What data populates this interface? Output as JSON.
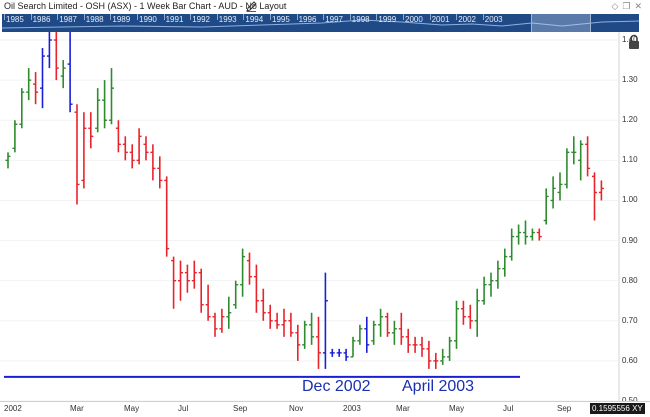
{
  "window": {
    "title": "Oil Search Limited - OSH (ASX) - 1 Week Bar Chart - AUD - No Layout",
    "icons": [
      "pencil-icon",
      "diamond-icon",
      "restore-icon",
      "close-icon"
    ]
  },
  "navigator": {
    "years": [
      "1985",
      "1986",
      "1987",
      "1988",
      "1989",
      "1990",
      "1991",
      "1992",
      "1993",
      "1994",
      "1995",
      "1996",
      "1997",
      "1998",
      "1999",
      "2000",
      "2001",
      "2002",
      "2003"
    ]
  },
  "axis": {
    "y_labels": [
      "1.40",
      "1.30",
      "1.20",
      "1.10",
      "1.00",
      "0.90",
      "0.80",
      "0.70",
      "0.60",
      "0.50"
    ],
    "x_labels": [
      "2002",
      "Mar",
      "May",
      "Jul",
      "Sep",
      "Nov",
      "2003",
      "Mar",
      "May",
      "Jul",
      "Sep"
    ],
    "price_readout": "0.1595556",
    "xy_badge": "XY"
  },
  "annotations": {
    "dec": "Dec 2002",
    "apr": "April 2003"
  },
  "colors": {
    "up": "#2e8b2e",
    "down": "#e8232b",
    "highlight": "#1a1fd6",
    "navigator": "#1f4a86",
    "support_line": "#1a1fd6"
  },
  "chart_data": {
    "type": "bar",
    "title": "Oil Search Limited - OSH (ASX) - 1 Week Bar Chart - AUD - No Layout",
    "ylim": [
      0.5,
      1.42
    ],
    "support_level": 0.56,
    "bars": [
      {
        "h": 1.12,
        "l": 1.08,
        "o": 1.1,
        "c": 1.11,
        "k": "u"
      },
      {
        "h": 1.2,
        "l": 1.12,
        "o": 1.13,
        "c": 1.19,
        "k": "u"
      },
      {
        "h": 1.28,
        "l": 1.18,
        "o": 1.19,
        "c": 1.27,
        "k": "u"
      },
      {
        "h": 1.33,
        "l": 1.25,
        "o": 1.27,
        "c": 1.3,
        "k": "u"
      },
      {
        "h": 1.32,
        "l": 1.24,
        "o": 1.29,
        "c": 1.27,
        "k": "d"
      },
      {
        "h": 1.38,
        "l": 1.23,
        "o": 1.28,
        "c": 1.36,
        "k": "h"
      },
      {
        "h": 1.42,
        "l": 1.33,
        "o": 1.36,
        "c": 1.4,
        "k": "h"
      },
      {
        "h": 1.42,
        "l": 1.3,
        "o": 1.4,
        "c": 1.33,
        "k": "d"
      },
      {
        "h": 1.35,
        "l": 1.28,
        "o": 1.31,
        "c": 1.33,
        "k": "u"
      },
      {
        "h": 1.42,
        "l": 1.22,
        "o": 1.34,
        "c": 1.24,
        "k": "h"
      },
      {
        "h": 1.24,
        "l": 0.99,
        "o": 1.22,
        "c": 1.04,
        "k": "d"
      },
      {
        "h": 1.22,
        "l": 1.03,
        "o": 1.05,
        "c": 1.18,
        "k": "d"
      },
      {
        "h": 1.22,
        "l": 1.13,
        "o": 1.18,
        "c": 1.16,
        "k": "d"
      },
      {
        "h": 1.28,
        "l": 1.17,
        "o": 1.18,
        "c": 1.25,
        "k": "u"
      },
      {
        "h": 1.3,
        "l": 1.18,
        "o": 1.25,
        "c": 1.2,
        "k": "u"
      },
      {
        "h": 1.33,
        "l": 1.19,
        "o": 1.2,
        "c": 1.28,
        "k": "u"
      },
      {
        "h": 1.2,
        "l": 1.12,
        "o": 1.18,
        "c": 1.14,
        "k": "d"
      },
      {
        "h": 1.16,
        "l": 1.1,
        "o": 1.14,
        "c": 1.12,
        "k": "d"
      },
      {
        "h": 1.14,
        "l": 1.08,
        "o": 1.12,
        "c": 1.1,
        "k": "d"
      },
      {
        "h": 1.18,
        "l": 1.09,
        "o": 1.1,
        "c": 1.16,
        "k": "d"
      },
      {
        "h": 1.16,
        "l": 1.1,
        "o": 1.14,
        "c": 1.12,
        "k": "d"
      },
      {
        "h": 1.14,
        "l": 1.05,
        "o": 1.12,
        "c": 1.08,
        "k": "d"
      },
      {
        "h": 1.11,
        "l": 1.03,
        "o": 1.08,
        "c": 1.05,
        "k": "d"
      },
      {
        "h": 1.06,
        "l": 0.86,
        "o": 1.05,
        "c": 0.88,
        "k": "d"
      },
      {
        "h": 0.86,
        "l": 0.73,
        "o": 0.85,
        "c": 0.8,
        "k": "d"
      },
      {
        "h": 0.85,
        "l": 0.75,
        "o": 0.8,
        "c": 0.82,
        "k": "d"
      },
      {
        "h": 0.84,
        "l": 0.77,
        "o": 0.82,
        "c": 0.8,
        "k": "d"
      },
      {
        "h": 0.85,
        "l": 0.78,
        "o": 0.8,
        "c": 0.82,
        "k": "d"
      },
      {
        "h": 0.83,
        "l": 0.72,
        "o": 0.82,
        "c": 0.74,
        "k": "d"
      },
      {
        "h": 0.79,
        "l": 0.7,
        "o": 0.74,
        "c": 0.71,
        "k": "d"
      },
      {
        "h": 0.72,
        "l": 0.66,
        "o": 0.71,
        "c": 0.68,
        "k": "d"
      },
      {
        "h": 0.73,
        "l": 0.67,
        "o": 0.68,
        "c": 0.71,
        "k": "d"
      },
      {
        "h": 0.76,
        "l": 0.68,
        "o": 0.71,
        "c": 0.72,
        "k": "u"
      },
      {
        "h": 0.8,
        "l": 0.73,
        "o": 0.74,
        "c": 0.79,
        "k": "u"
      },
      {
        "h": 0.88,
        "l": 0.76,
        "o": 0.79,
        "c": 0.86,
        "k": "u"
      },
      {
        "h": 0.87,
        "l": 0.79,
        "o": 0.85,
        "c": 0.81,
        "k": "d"
      },
      {
        "h": 0.84,
        "l": 0.72,
        "o": 0.81,
        "c": 0.75,
        "k": "d"
      },
      {
        "h": 0.78,
        "l": 0.7,
        "o": 0.75,
        "c": 0.72,
        "k": "d"
      },
      {
        "h": 0.74,
        "l": 0.68,
        "o": 0.72,
        "c": 0.7,
        "k": "d"
      },
      {
        "h": 0.72,
        "l": 0.68,
        "o": 0.7,
        "c": 0.69,
        "k": "d"
      },
      {
        "h": 0.73,
        "l": 0.66,
        "o": 0.69,
        "c": 0.7,
        "k": "d"
      },
      {
        "h": 0.72,
        "l": 0.66,
        "o": 0.7,
        "c": 0.67,
        "k": "d"
      },
      {
        "h": 0.69,
        "l": 0.6,
        "o": 0.67,
        "c": 0.64,
        "k": "d"
      },
      {
        "h": 0.7,
        "l": 0.63,
        "o": 0.64,
        "c": 0.69,
        "k": "u"
      },
      {
        "h": 0.72,
        "l": 0.64,
        "o": 0.69,
        "c": 0.66,
        "k": "u"
      },
      {
        "h": 0.71,
        "l": 0.58,
        "o": 0.66,
        "c": 0.62,
        "k": "d"
      },
      {
        "h": 0.82,
        "l": 0.58,
        "o": 0.62,
        "c": 0.75,
        "k": "h"
      },
      {
        "h": 0.63,
        "l": 0.61,
        "o": 0.62,
        "c": 0.62,
        "k": "h"
      },
      {
        "h": 0.63,
        "l": 0.61,
        "o": 0.62,
        "c": 0.62,
        "k": "h"
      },
      {
        "h": 0.63,
        "l": 0.6,
        "o": 0.62,
        "c": 0.61,
        "k": "h"
      },
      {
        "h": 0.66,
        "l": 0.61,
        "o": 0.61,
        "c": 0.65,
        "k": "u"
      },
      {
        "h": 0.69,
        "l": 0.64,
        "o": 0.65,
        "c": 0.68,
        "k": "u"
      },
      {
        "h": 0.71,
        "l": 0.62,
        "o": 0.68,
        "c": 0.64,
        "k": "h"
      },
      {
        "h": 0.7,
        "l": 0.64,
        "o": 0.65,
        "c": 0.69,
        "k": "u"
      },
      {
        "h": 0.73,
        "l": 0.66,
        "o": 0.69,
        "c": 0.71,
        "k": "u"
      },
      {
        "h": 0.72,
        "l": 0.66,
        "o": 0.71,
        "c": 0.67,
        "k": "d"
      },
      {
        "h": 0.7,
        "l": 0.64,
        "o": 0.67,
        "c": 0.68,
        "k": "u"
      },
      {
        "h": 0.72,
        "l": 0.64,
        "o": 0.68,
        "c": 0.66,
        "k": "d"
      },
      {
        "h": 0.68,
        "l": 0.62,
        "o": 0.66,
        "c": 0.64,
        "k": "d"
      },
      {
        "h": 0.66,
        "l": 0.62,
        "o": 0.64,
        "c": 0.64,
        "k": "d"
      },
      {
        "h": 0.66,
        "l": 0.61,
        "o": 0.64,
        "c": 0.63,
        "k": "d"
      },
      {
        "h": 0.65,
        "l": 0.58,
        "o": 0.63,
        "c": 0.6,
        "k": "d"
      },
      {
        "h": 0.62,
        "l": 0.58,
        "o": 0.6,
        "c": 0.6,
        "k": "d"
      },
      {
        "h": 0.63,
        "l": 0.59,
        "o": 0.6,
        "c": 0.61,
        "k": "u"
      },
      {
        "h": 0.66,
        "l": 0.6,
        "o": 0.61,
        "c": 0.65,
        "k": "u"
      },
      {
        "h": 0.75,
        "l": 0.63,
        "o": 0.65,
        "c": 0.73,
        "k": "u"
      },
      {
        "h": 0.75,
        "l": 0.69,
        "o": 0.73,
        "c": 0.71,
        "k": "d"
      },
      {
        "h": 0.74,
        "l": 0.68,
        "o": 0.71,
        "c": 0.7,
        "k": "d"
      },
      {
        "h": 0.78,
        "l": 0.66,
        "o": 0.7,
        "c": 0.75,
        "k": "u"
      },
      {
        "h": 0.81,
        "l": 0.74,
        "o": 0.75,
        "c": 0.79,
        "k": "u"
      },
      {
        "h": 0.82,
        "l": 0.76,
        "o": 0.79,
        "c": 0.8,
        "k": "u"
      },
      {
        "h": 0.85,
        "l": 0.78,
        "o": 0.8,
        "c": 0.83,
        "k": "u"
      },
      {
        "h": 0.88,
        "l": 0.81,
        "o": 0.83,
        "c": 0.86,
        "k": "u"
      },
      {
        "h": 0.93,
        "l": 0.85,
        "o": 0.86,
        "c": 0.91,
        "k": "u"
      },
      {
        "h": 0.94,
        "l": 0.89,
        "o": 0.91,
        "c": 0.92,
        "k": "u"
      },
      {
        "h": 0.95,
        "l": 0.89,
        "o": 0.92,
        "c": 0.91,
        "k": "u"
      },
      {
        "h": 0.93,
        "l": 0.9,
        "o": 0.91,
        "c": 0.92,
        "k": "u"
      },
      {
        "h": 0.93,
        "l": 0.9,
        "o": 0.92,
        "c": 0.91,
        "k": "d"
      },
      {
        "h": 1.03,
        "l": 0.94,
        "o": 0.95,
        "c": 1.01,
        "k": "u"
      },
      {
        "h": 1.06,
        "l": 0.98,
        "o": 1.0,
        "c": 1.03,
        "k": "u"
      },
      {
        "h": 1.07,
        "l": 1.0,
        "o": 1.02,
        "c": 1.04,
        "k": "u"
      },
      {
        "h": 1.13,
        "l": 1.03,
        "o": 1.04,
        "c": 1.12,
        "k": "u"
      },
      {
        "h": 1.16,
        "l": 1.09,
        "o": 1.12,
        "c": 1.12,
        "k": "u"
      },
      {
        "h": 1.15,
        "l": 1.05,
        "o": 1.1,
        "c": 1.14,
        "k": "u"
      },
      {
        "h": 1.16,
        "l": 1.06,
        "o": 1.14,
        "c": 1.08,
        "k": "d"
      },
      {
        "h": 1.07,
        "l": 0.95,
        "o": 1.06,
        "c": 1.02,
        "k": "d"
      },
      {
        "h": 1.05,
        "l": 1.0,
        "o": 1.02,
        "c": 1.03,
        "k": "d"
      }
    ]
  }
}
